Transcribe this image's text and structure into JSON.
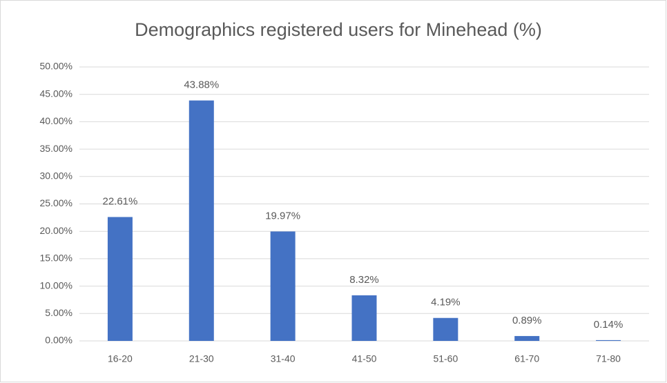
{
  "chart_data": {
    "type": "bar",
    "title": "Demographics registered users for Minehead (%)",
    "categories": [
      "16-20",
      "21-30",
      "31-40",
      "41-50",
      "51-60",
      "61-70",
      "71-80"
    ],
    "values": [
      22.61,
      43.88,
      19.97,
      8.32,
      4.19,
      0.89,
      0.14
    ],
    "value_labels": [
      "22.61%",
      "43.88%",
      "19.97%",
      "8.32%",
      "4.19%",
      "0.89%",
      "0.14%"
    ],
    "color": "#4472c4",
    "ylim": [
      0,
      50
    ],
    "yticks": [
      {
        "value": 0,
        "label": "0.00%"
      },
      {
        "value": 5,
        "label": "5.00%"
      },
      {
        "value": 10,
        "label": "10.00%"
      },
      {
        "value": 15,
        "label": "15.00%"
      },
      {
        "value": 20,
        "label": "20.00%"
      },
      {
        "value": 25,
        "label": "25.00%"
      },
      {
        "value": 30,
        "label": "30.00%"
      },
      {
        "value": 35,
        "label": "35.00%"
      },
      {
        "value": 40,
        "label": "40.00%"
      },
      {
        "value": 45,
        "label": "45.00%"
      },
      {
        "value": 50,
        "label": "50.00%"
      }
    ],
    "grid": true
  }
}
